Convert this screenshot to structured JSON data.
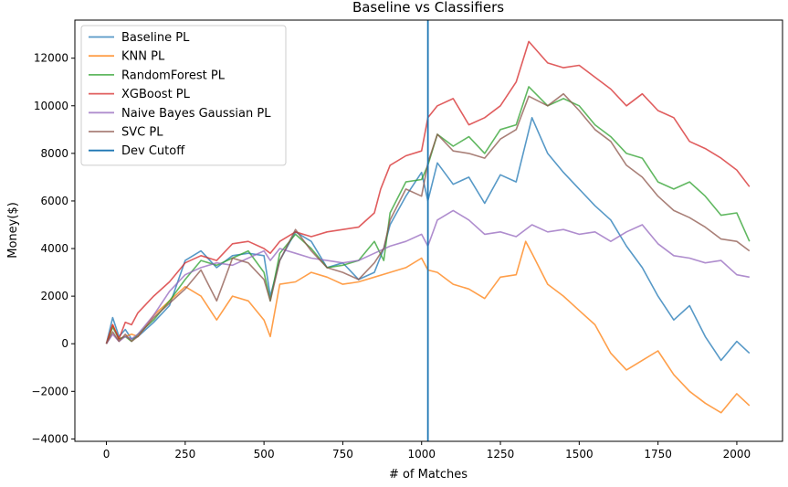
{
  "chart_data": {
    "type": "line",
    "title": "Baseline vs Classifiers",
    "xlabel": "# of Matches",
    "ylabel": "Money($)",
    "xlim": [
      -100,
      2145
    ],
    "ylim": [
      -4100,
      13600
    ],
    "xticks": [
      0,
      250,
      500,
      750,
      1000,
      1250,
      1500,
      1750,
      2000
    ],
    "yticks": [
      -4000,
      -2000,
      0,
      2000,
      4000,
      6000,
      8000,
      10000,
      12000
    ],
    "grid": false,
    "legend_position": "top-left",
    "cutoff": {
      "name": "Dev Cutoff",
      "x": 1020,
      "color": "#1f77b4"
    },
    "series": [
      {
        "name": "Baseline PL",
        "color": "#1f77b4",
        "x": [
          0,
          20,
          40,
          60,
          80,
          100,
          150,
          200,
          250,
          300,
          350,
          400,
          450,
          500,
          520,
          550,
          600,
          650,
          700,
          750,
          800,
          850,
          880,
          900,
          950,
          1000,
          1020,
          1050,
          1100,
          1150,
          1200,
          1250,
          1300,
          1350,
          1400,
          1450,
          1500,
          1550,
          1600,
          1650,
          1700,
          1750,
          1800,
          1850,
          1900,
          1950,
          2000,
          2040
        ],
        "y": [
          0,
          1100,
          300,
          600,
          200,
          300,
          900,
          1600,
          3500,
          3900,
          3200,
          3700,
          3800,
          3700,
          2000,
          3500,
          4700,
          4300,
          3200,
          3400,
          2700,
          3000,
          4000,
          5000,
          6200,
          7200,
          6000,
          7600,
          6700,
          7000,
          5900,
          7100,
          6800,
          9500,
          8000,
          7200,
          6500,
          5800,
          5200,
          4100,
          3200,
          2000,
          1000,
          1600,
          300,
          -700,
          100,
          -400
        ]
      },
      {
        "name": "KNN PL",
        "color": "#ff7f0e",
        "x": [
          0,
          20,
          40,
          60,
          80,
          100,
          150,
          200,
          250,
          300,
          350,
          400,
          450,
          500,
          520,
          550,
          600,
          650,
          700,
          750,
          800,
          850,
          900,
          950,
          1000,
          1020,
          1050,
          1100,
          1150,
          1200,
          1250,
          1300,
          1330,
          1350,
          1400,
          1450,
          1500,
          1550,
          1600,
          1650,
          1700,
          1750,
          1800,
          1850,
          1900,
          1950,
          2000,
          2040
        ],
        "y": [
          0,
          800,
          200,
          300,
          400,
          300,
          1200,
          1800,
          2400,
          2000,
          1000,
          2000,
          1800,
          1000,
          300,
          2500,
          2600,
          3000,
          2800,
          2500,
          2600,
          2800,
          3000,
          3200,
          3600,
          3100,
          3000,
          2500,
          2300,
          1900,
          2800,
          2900,
          4300,
          3800,
          2500,
          2000,
          1400,
          800,
          -400,
          -1100,
          -700,
          -300,
          -1300,
          -2000,
          -2500,
          -2900,
          -2100,
          -2600
        ]
      },
      {
        "name": "RandomForest PL",
        "color": "#2ca02c",
        "x": [
          0,
          20,
          40,
          60,
          80,
          100,
          150,
          200,
          250,
          300,
          350,
          400,
          450,
          500,
          520,
          550,
          600,
          650,
          700,
          750,
          800,
          850,
          880,
          900,
          950,
          1000,
          1020,
          1050,
          1100,
          1150,
          1200,
          1250,
          1300,
          1340,
          1400,
          1450,
          1500,
          1550,
          1600,
          1650,
          1700,
          1750,
          1800,
          1850,
          1900,
          1950,
          2000,
          2040
        ],
        "y": [
          0,
          700,
          200,
          300,
          100,
          400,
          1000,
          1800,
          2700,
          3500,
          3300,
          3600,
          3900,
          3000,
          1800,
          3800,
          4600,
          4000,
          3200,
          3300,
          3500,
          4300,
          3500,
          5500,
          6800,
          6900,
          7500,
          8800,
          8300,
          8700,
          8000,
          9000,
          9200,
          10800,
          10000,
          10300,
          10000,
          9200,
          8700,
          8000,
          7800,
          6800,
          6500,
          6800,
          6200,
          5400,
          5500,
          4300
        ]
      },
      {
        "name": "XGBoost PL",
        "color": "#d62728",
        "x": [
          0,
          20,
          40,
          60,
          80,
          100,
          150,
          200,
          250,
          300,
          350,
          400,
          450,
          500,
          520,
          550,
          600,
          650,
          700,
          750,
          800,
          850,
          870,
          900,
          950,
          1000,
          1020,
          1050,
          1100,
          1150,
          1200,
          1250,
          1300,
          1340,
          1400,
          1450,
          1500,
          1550,
          1600,
          1650,
          1700,
          1750,
          1800,
          1850,
          1900,
          1950,
          2000,
          2040
        ],
        "y": [
          0,
          800,
          200,
          900,
          800,
          1300,
          2000,
          2600,
          3400,
          3700,
          3500,
          4200,
          4300,
          4000,
          3800,
          4300,
          4700,
          4500,
          4700,
          4800,
          4900,
          5500,
          6500,
          7500,
          7900,
          8100,
          9500,
          10000,
          10300,
          9200,
          9500,
          10000,
          11000,
          12700,
          11800,
          11600,
          11700,
          11200,
          10700,
          10000,
          10500,
          9800,
          9500,
          8500,
          8200,
          7800,
          7300,
          6600
        ]
      },
      {
        "name": "Naive Bayes Gaussian PL",
        "color": "#9467bd",
        "x": [
          0,
          20,
          40,
          60,
          80,
          100,
          150,
          200,
          250,
          300,
          350,
          400,
          450,
          500,
          520,
          550,
          600,
          650,
          700,
          750,
          800,
          850,
          900,
          950,
          1000,
          1020,
          1050,
          1100,
          1150,
          1200,
          1250,
          1300,
          1350,
          1400,
          1450,
          1500,
          1550,
          1600,
          1650,
          1700,
          1750,
          1800,
          1850,
          1900,
          1950,
          2000,
          2040
        ],
        "y": [
          0,
          400,
          100,
          300,
          200,
          400,
          1200,
          2200,
          2900,
          3200,
          3400,
          3300,
          3600,
          3900,
          3500,
          4000,
          3800,
          3600,
          3500,
          3400,
          3500,
          3800,
          4100,
          4300,
          4600,
          4100,
          5200,
          5600,
          5200,
          4600,
          4700,
          4500,
          5000,
          4700,
          4800,
          4600,
          4700,
          4300,
          4700,
          5000,
          4200,
          3700,
          3600,
          3400,
          3500,
          2900,
          2800
        ]
      },
      {
        "name": "SVC PL",
        "color": "#8c564b",
        "x": [
          0,
          20,
          40,
          60,
          80,
          100,
          150,
          200,
          250,
          300,
          350,
          400,
          450,
          500,
          520,
          550,
          600,
          650,
          700,
          750,
          800,
          850,
          880,
          900,
          950,
          1000,
          1020,
          1050,
          1100,
          1150,
          1200,
          1250,
          1300,
          1340,
          1400,
          1450,
          1500,
          1550,
          1600,
          1650,
          1700,
          1750,
          1800,
          1850,
          1900,
          1950,
          2000,
          2040
        ],
        "y": [
          0,
          500,
          100,
          400,
          100,
          300,
          1100,
          1700,
          2300,
          3100,
          1800,
          3600,
          3400,
          2700,
          1800,
          3500,
          4800,
          3900,
          3200,
          3000,
          2700,
          3400,
          4000,
          5200,
          6500,
          6200,
          7600,
          8800,
          8100,
          8000,
          7800,
          8600,
          9000,
          10400,
          10000,
          10500,
          9800,
          9000,
          8500,
          7500,
          7000,
          6200,
          5600,
          5300,
          4900,
          4400,
          4300,
          3900
        ]
      }
    ]
  }
}
